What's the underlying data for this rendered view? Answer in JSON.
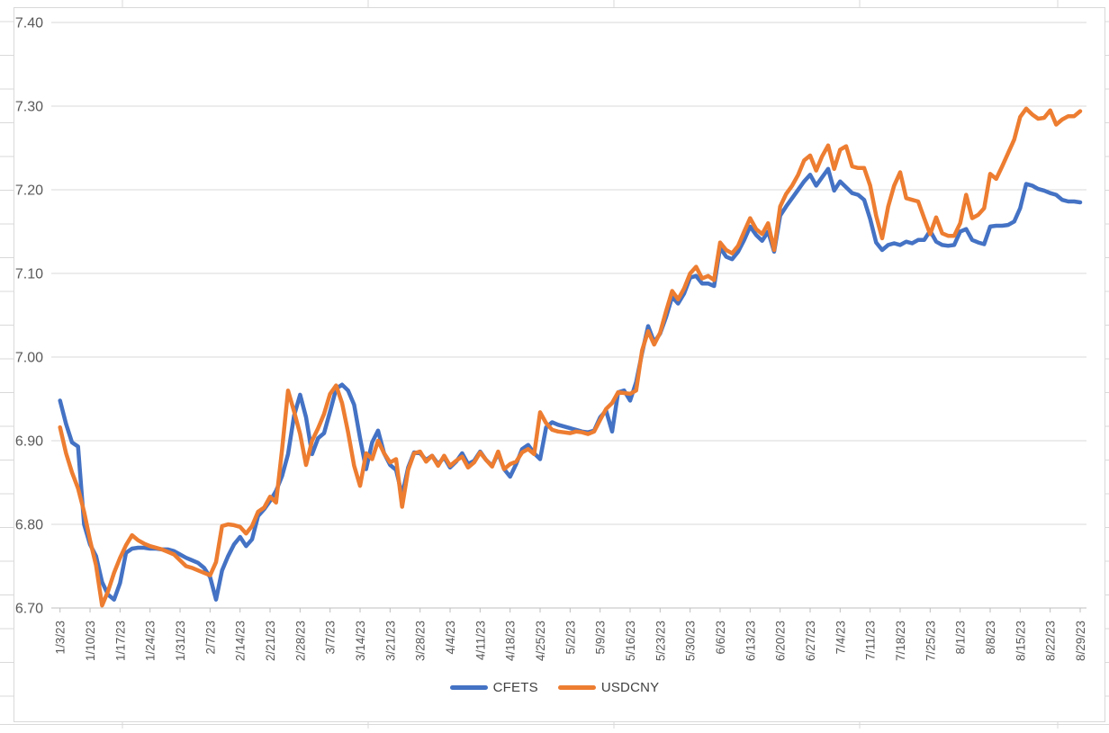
{
  "chart_data": {
    "type": "line",
    "title": "",
    "xlabel": "",
    "ylabel": "",
    "ylim": [
      6.7,
      7.4
    ],
    "y_tick_step": 0.1,
    "grid": "horizontal",
    "legend_position": "bottom",
    "y_tick_labels": [
      "6.70",
      "6.80",
      "6.90",
      "7.00",
      "7.10",
      "7.20",
      "7.30",
      "7.40"
    ],
    "x_tick_labels": [
      "1/3/23",
      "1/10/23",
      "1/17/23",
      "1/24/23",
      "1/31/23",
      "2/7/23",
      "2/14/23",
      "2/21/23",
      "2/28/23",
      "3/7/23",
      "3/14/23",
      "3/21/23",
      "3/28/23",
      "4/4/23",
      "4/11/23",
      "4/18/23",
      "4/25/23",
      "5/2/23",
      "5/9/23",
      "5/16/23",
      "5/23/23",
      "5/30/23",
      "6/6/23",
      "6/13/23",
      "6/20/23",
      "6/27/23",
      "7/4/23",
      "7/11/23",
      "7/18/23",
      "7/25/23",
      "8/1/23",
      "8/8/23",
      "8/15/23",
      "8/22/23",
      "8/29/23"
    ],
    "series": [
      {
        "name": "CFETS",
        "color": "#4472C4",
        "values": [
          6.948,
          6.92,
          6.898,
          6.893,
          6.8,
          6.776,
          6.762,
          6.731,
          6.716,
          6.71,
          6.73,
          6.766,
          6.771,
          6.772,
          6.772,
          6.771,
          6.771,
          6.77,
          6.77,
          6.768,
          6.764,
          6.76,
          6.757,
          6.754,
          6.748,
          6.737,
          6.71,
          6.745,
          6.762,
          6.776,
          6.785,
          6.774,
          6.782,
          6.81,
          6.818,
          6.828,
          6.84,
          6.858,
          6.884,
          6.93,
          6.955,
          6.928,
          6.884,
          6.903,
          6.909,
          6.935,
          6.962,
          6.967,
          6.96,
          6.943,
          6.903,
          6.866,
          6.898,
          6.912,
          6.885,
          6.871,
          6.865,
          6.835,
          6.868,
          6.886,
          6.885,
          6.877,
          6.882,
          6.872,
          6.88,
          6.868,
          6.875,
          6.885,
          6.872,
          6.876,
          6.887,
          6.877,
          6.87,
          6.885,
          6.866,
          6.857,
          6.872,
          6.89,
          6.895,
          6.885,
          6.878,
          6.916,
          6.922,
          6.919,
          6.917,
          6.915,
          6.913,
          6.911,
          6.91,
          6.912,
          6.928,
          6.936,
          6.911,
          6.958,
          6.96,
          6.948,
          6.97,
          7.005,
          7.037,
          7.018,
          7.028,
          7.048,
          7.072,
          7.064,
          7.076,
          7.095,
          7.097,
          7.088,
          7.088,
          7.085,
          7.131,
          7.12,
          7.117,
          7.126,
          7.14,
          7.156,
          7.146,
          7.139,
          7.15,
          7.126,
          7.169,
          7.18,
          7.19,
          7.2,
          7.21,
          7.218,
          7.205,
          7.215,
          7.225,
          7.199,
          7.21,
          7.203,
          7.196,
          7.194,
          7.188,
          7.165,
          7.137,
          7.128,
          7.134,
          7.136,
          7.134,
          7.138,
          7.136,
          7.14,
          7.14,
          7.151,
          7.138,
          7.134,
          7.133,
          7.134,
          7.15,
          7.153,
          7.14,
          7.137,
          7.135,
          7.156,
          7.157,
          7.157,
          7.158,
          7.162,
          7.178,
          7.207,
          7.205,
          7.201,
          7.199,
          7.196,
          7.194,
          7.188,
          7.186,
          7.186,
          7.185
        ]
      },
      {
        "name": "USDCNY",
        "color": "#ED7D31",
        "values": [
          6.916,
          6.885,
          6.862,
          6.843,
          6.815,
          6.781,
          6.751,
          6.703,
          6.72,
          6.742,
          6.76,
          6.775,
          6.787,
          6.781,
          6.777,
          6.774,
          6.772,
          6.77,
          6.767,
          6.764,
          6.757,
          6.75,
          6.748,
          6.745,
          6.742,
          6.739,
          6.755,
          6.798,
          6.8,
          6.799,
          6.797,
          6.789,
          6.798,
          6.815,
          6.82,
          6.833,
          6.826,
          6.89,
          6.96,
          6.935,
          6.908,
          6.871,
          6.9,
          6.915,
          6.932,
          6.956,
          6.966,
          6.945,
          6.91,
          6.87,
          6.846,
          6.885,
          6.878,
          6.9,
          6.885,
          6.874,
          6.878,
          6.821,
          6.865,
          6.885,
          6.887,
          6.875,
          6.882,
          6.87,
          6.882,
          6.87,
          6.876,
          6.881,
          6.868,
          6.874,
          6.886,
          6.877,
          6.869,
          6.887,
          6.866,
          6.872,
          6.875,
          6.886,
          6.89,
          6.884,
          6.934,
          6.921,
          6.913,
          6.911,
          6.91,
          6.909,
          6.911,
          6.91,
          6.908,
          6.911,
          6.925,
          6.938,
          6.945,
          6.958,
          6.957,
          6.956,
          6.96,
          7.008,
          7.031,
          7.015,
          7.029,
          7.055,
          7.079,
          7.069,
          7.082,
          7.1,
          7.108,
          7.094,
          7.097,
          7.092,
          7.137,
          7.128,
          7.124,
          7.133,
          7.15,
          7.166,
          7.153,
          7.147,
          7.16,
          7.128,
          7.18,
          7.195,
          7.205,
          7.218,
          7.235,
          7.241,
          7.223,
          7.24,
          7.253,
          7.225,
          7.248,
          7.252,
          7.228,
          7.226,
          7.226,
          7.205,
          7.169,
          7.142,
          7.18,
          7.205,
          7.221,
          7.19,
          7.188,
          7.186,
          7.166,
          7.147,
          7.167,
          7.148,
          7.145,
          7.145,
          7.16,
          7.194,
          7.166,
          7.17,
          7.178,
          7.219,
          7.213,
          7.228,
          7.244,
          7.26,
          7.287,
          7.297,
          7.29,
          7.285,
          7.286,
          7.295,
          7.278,
          7.284,
          7.288,
          7.288,
          7.294
        ]
      }
    ]
  },
  "colors": {
    "plot_gridline": "#D9D9D9",
    "axis_line": "#BFBFBF",
    "tick_label": "#595959",
    "chart_border": "#D9D9D9",
    "background": "#FFFFFF"
  }
}
